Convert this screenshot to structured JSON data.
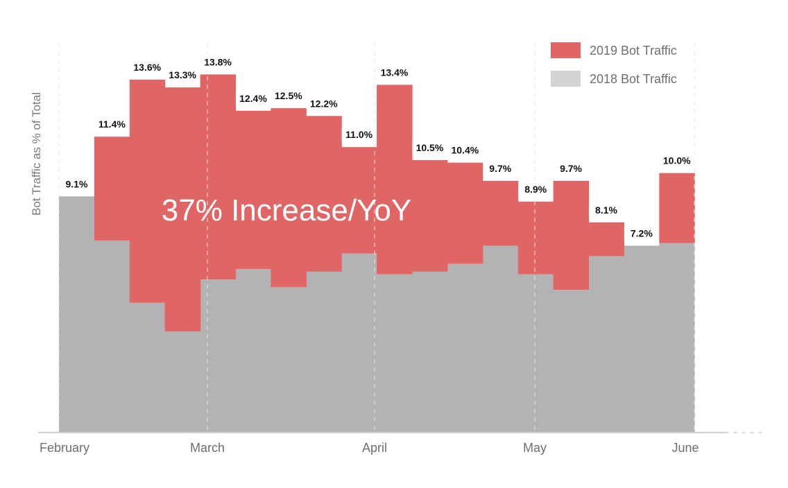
{
  "chart_data": {
    "type": "area",
    "ylabel": "Bot Traffic as % of Total",
    "x_tick_labels": [
      "February",
      "March",
      "April",
      "May",
      "June"
    ],
    "annotation": "37% Increase/YoY",
    "grid": "dashed vertical lines at month boundaries",
    "legend_position": "top-right",
    "series": [
      {
        "name": "2019 Bot Traffic",
        "color": "#e06666",
        "values": [
          9.1,
          11.4,
          13.6,
          13.3,
          13.8,
          12.4,
          12.5,
          12.2,
          11.0,
          13.4,
          10.5,
          10.4,
          9.7,
          8.9,
          9.7,
          8.1,
          7.2,
          10.0
        ],
        "labels": [
          "9.1%",
          "11.4%",
          "13.6%",
          "13.3%",
          "13.8%",
          "12.4%",
          "12.5%",
          "12.2%",
          "11.0%",
          "13.4%",
          "10.5%",
          "10.4%",
          "9.7%",
          "8.9%",
          "9.7%",
          "8.1%",
          "7.2%",
          "10.0%"
        ]
      },
      {
        "name": "2018 Bot Traffic",
        "color": "#b3b3b3",
        "values": [
          9.1,
          7.4,
          5.0,
          3.9,
          5.9,
          6.3,
          5.6,
          6.2,
          6.9,
          6.1,
          6.2,
          6.5,
          7.2,
          6.1,
          5.5,
          6.8,
          7.2,
          7.3
        ]
      }
    ],
    "ylim": [
      0,
      15.6
    ]
  }
}
